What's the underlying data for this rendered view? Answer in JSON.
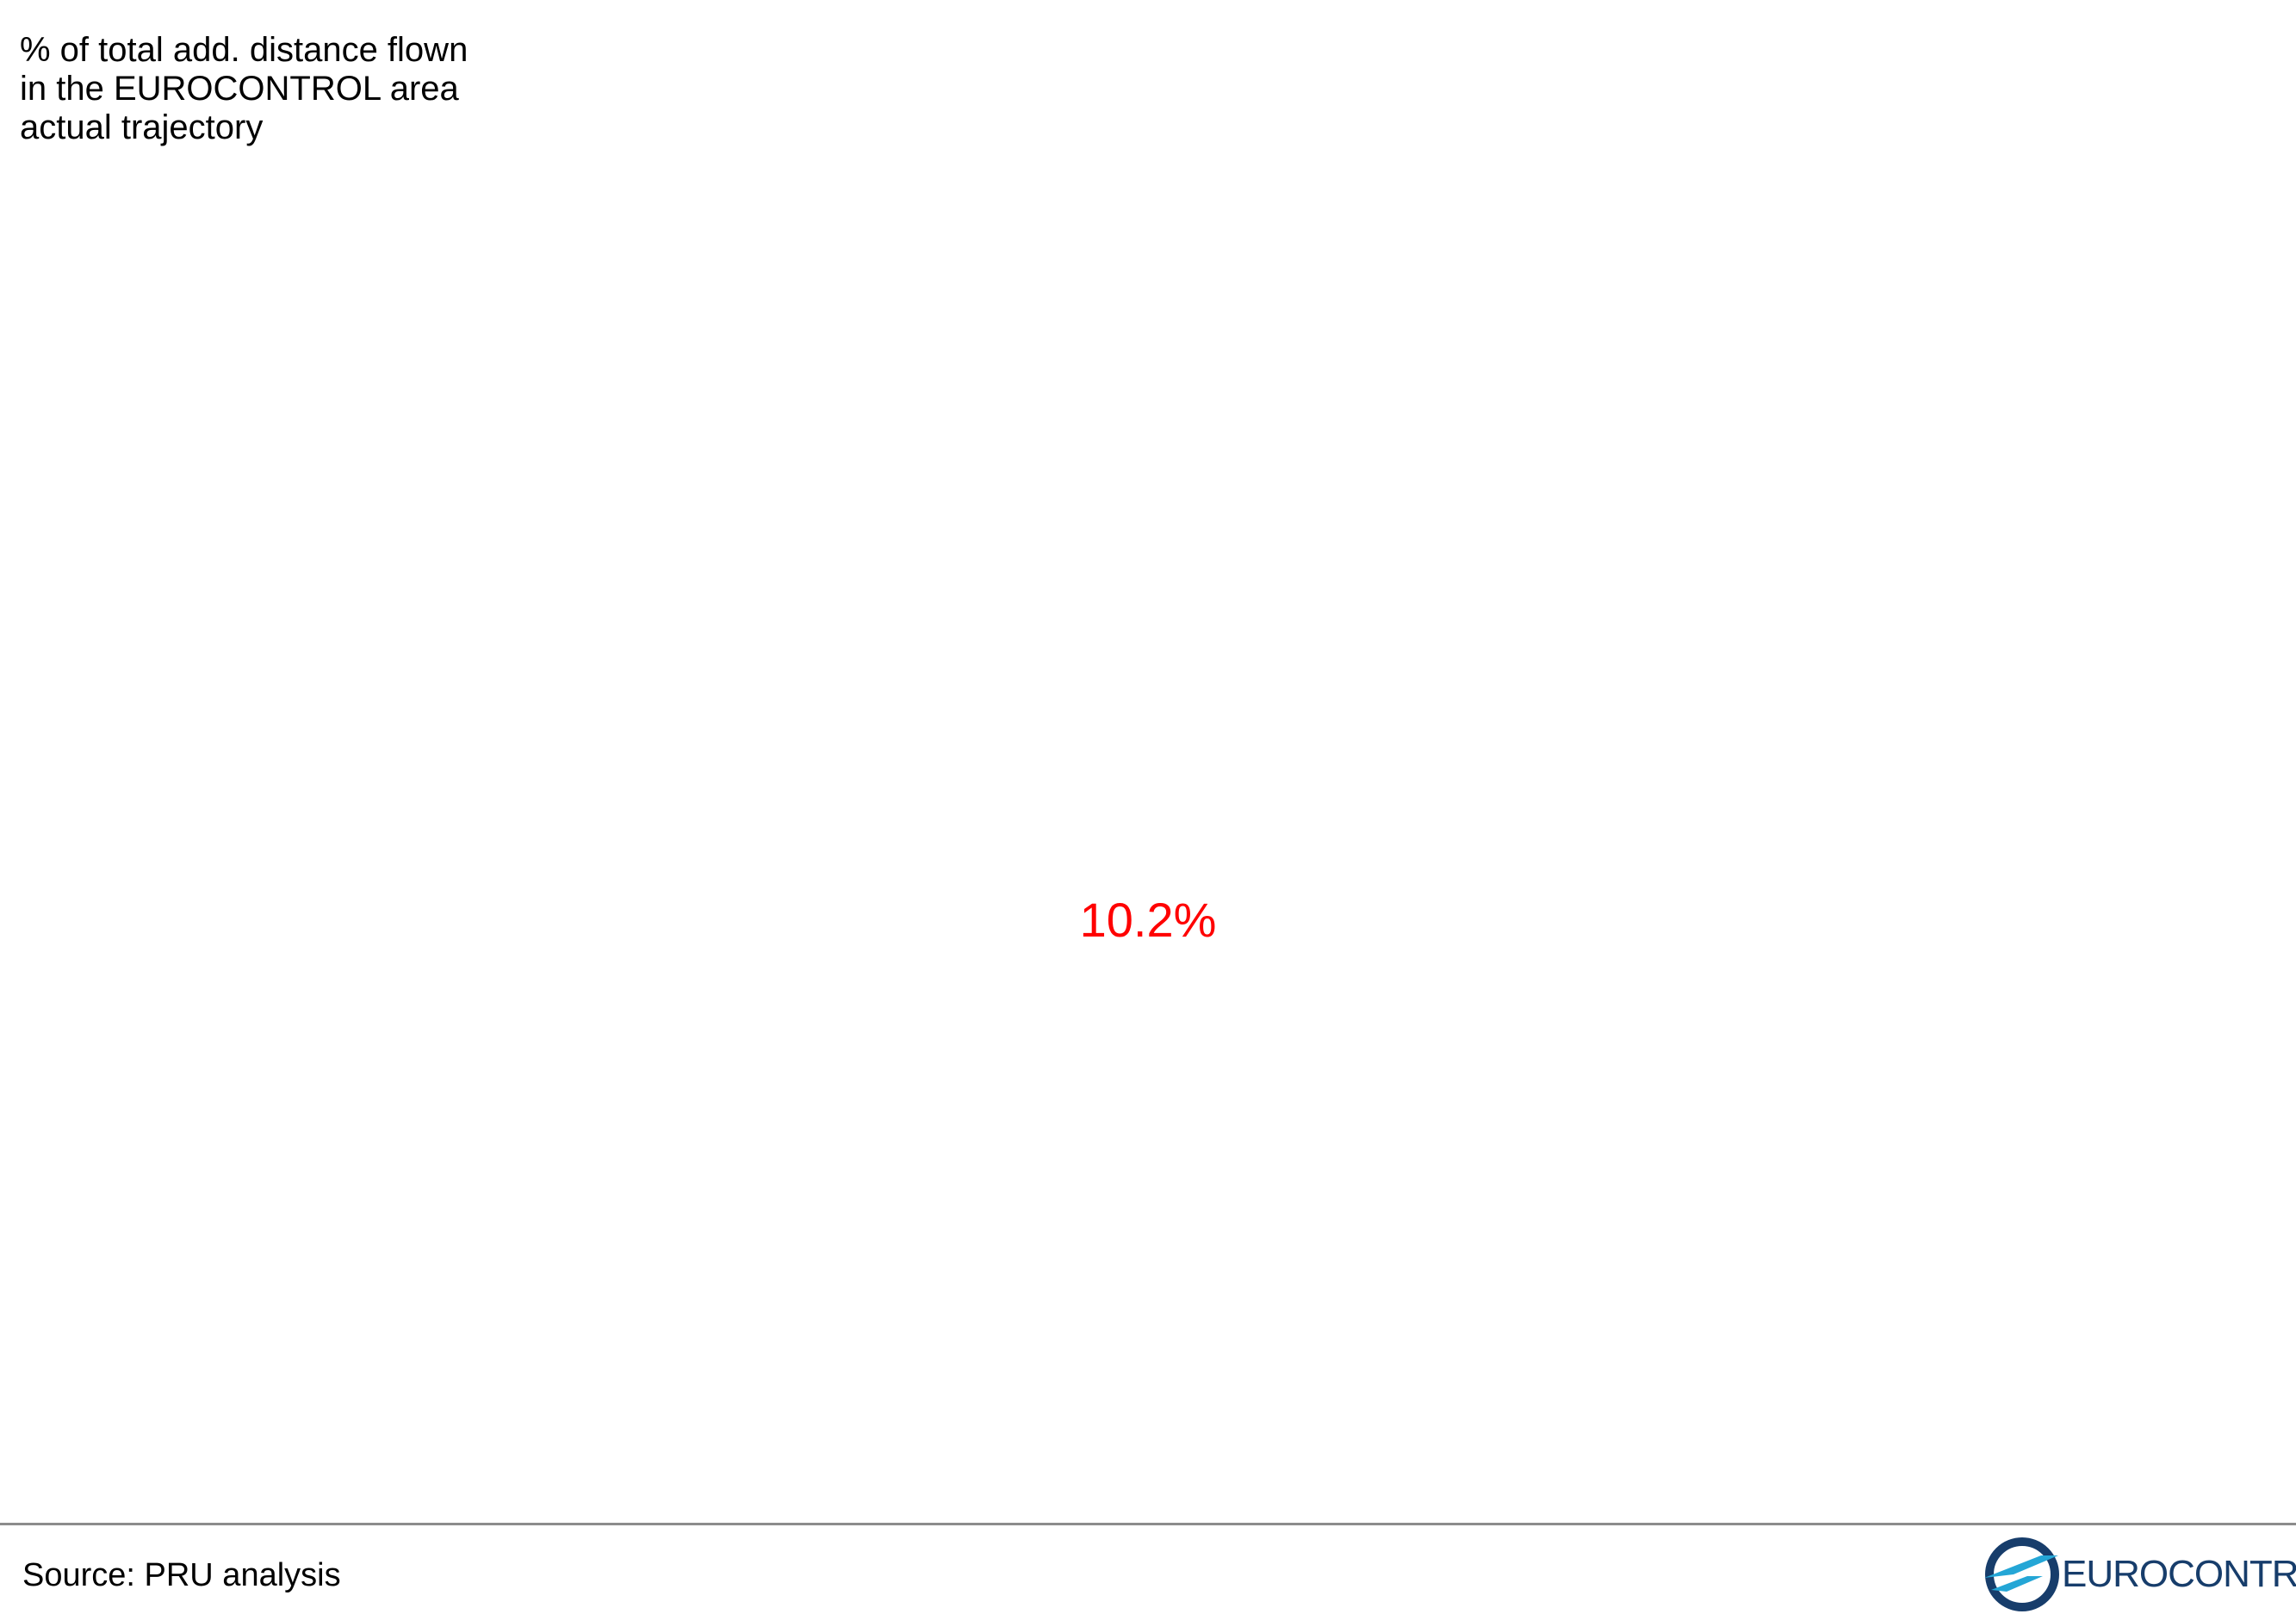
{
  "title_lines": [
    "% of total add. distance flown",
    "in the EUROCONTROL area",
    "actual trajectory"
  ],
  "headline": {
    "value_label": "10.2%",
    "color": "#ff0000"
  },
  "footer": {
    "source": "Source: PRU analysis"
  },
  "logo": {
    "wordmark": "EUROCONTROL",
    "icon": "eurocontrol-emblem-icon",
    "colors": {
      "navy": "#173d6b",
      "teal": "#24a6d6"
    }
  },
  "chart_data": {
    "type": "table",
    "values": [
      10.2
    ],
    "value_labels": [
      "10.2%"
    ],
    "unit": "%"
  }
}
